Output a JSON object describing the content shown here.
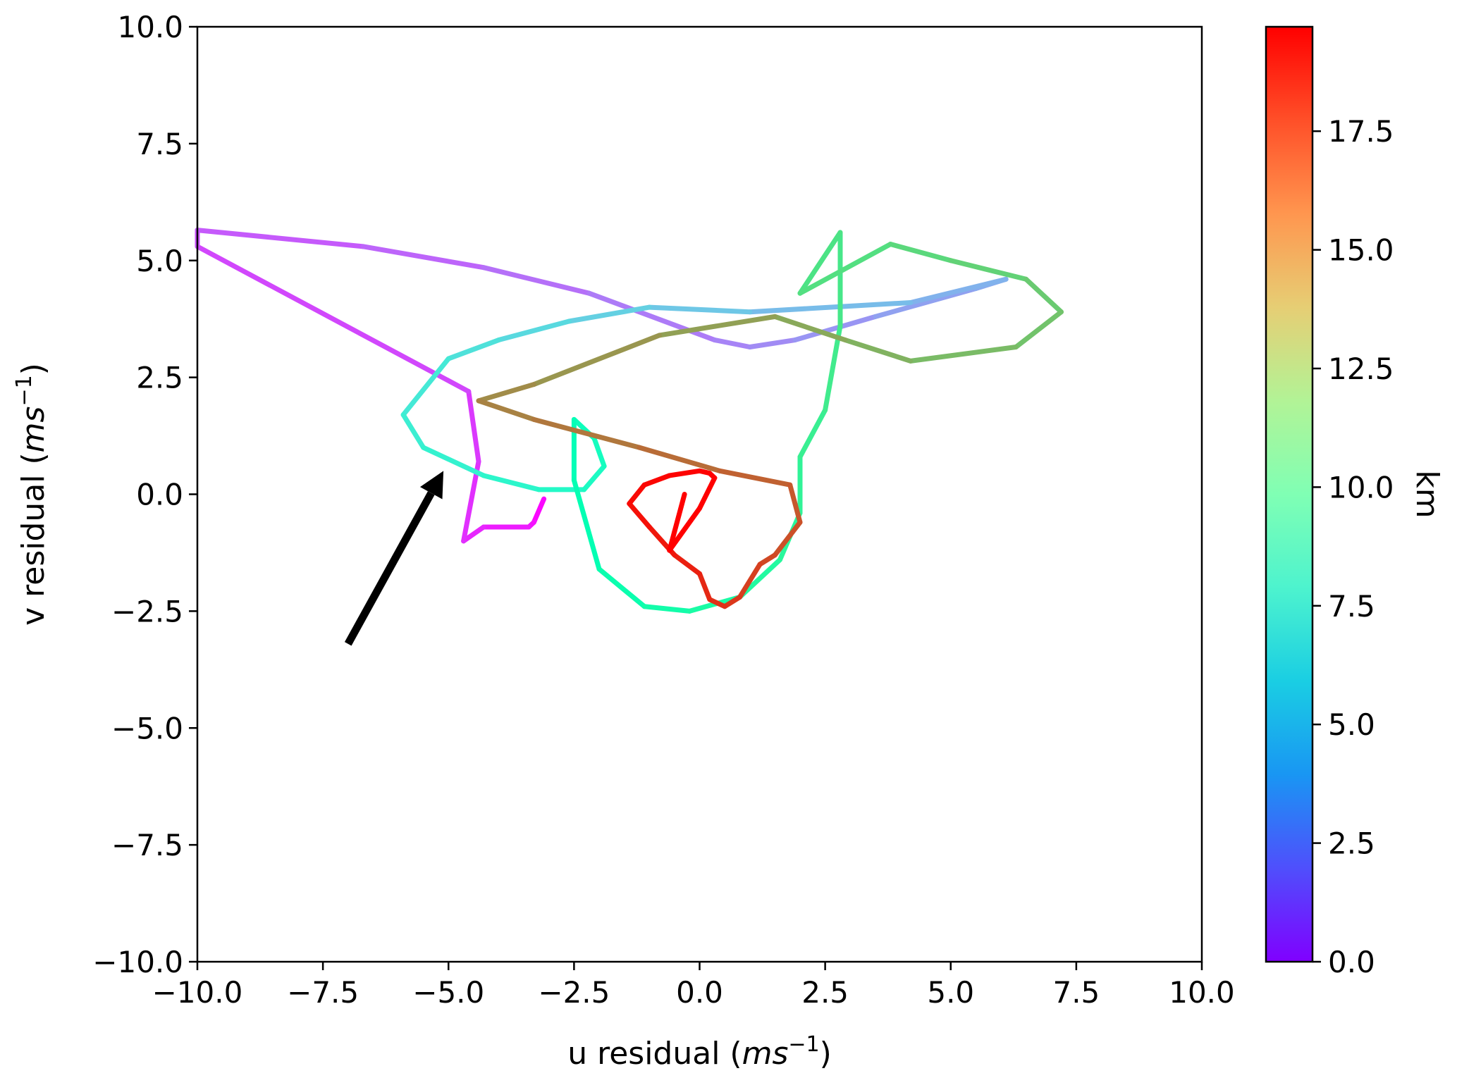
{
  "chart_data": {
    "type": "line",
    "xlabel_text": "u residual (",
    "xlabel_unit_base": "ms",
    "xlabel_unit_exp": "−1",
    "xlabel_close": ")",
    "ylabel_text": "v residual (",
    "ylabel_unit_base": "ms",
    "ylabel_unit_exp": "−1",
    "ylabel_close": ")",
    "xlim": [
      -10,
      10
    ],
    "ylim": [
      -10,
      10
    ],
    "x_ticks": [
      -10,
      -7.5,
      -5,
      -2.5,
      0,
      2.5,
      5,
      7.5,
      10
    ],
    "x_tick_labels": [
      "−10.0",
      "−7.5",
      "−5.0",
      "−2.5",
      "0.0",
      "2.5",
      "5.0",
      "7.5",
      "10.0"
    ],
    "y_ticks": [
      -10,
      -7.5,
      -5,
      -2.5,
      0,
      2.5,
      5,
      7.5,
      10
    ],
    "y_tick_labels": [
      "−10.0",
      "−7.5",
      "−5.0",
      "−2.5",
      "0.0",
      "2.5",
      "5.0",
      "7.5",
      "10.0"
    ],
    "colorbar": {
      "label": "km",
      "range": [
        0,
        19.7
      ],
      "ticks": [
        0,
        2.5,
        5,
        7.5,
        10,
        12.5,
        15,
        17.5
      ],
      "tick_labels": [
        "0.0",
        "2.5",
        "5.0",
        "7.5",
        "10.0",
        "12.5",
        "15.0",
        "17.5"
      ],
      "colormap": "rainbow"
    },
    "hodograph_u": [
      -3.1,
      -3.3,
      -3.4,
      -4.3,
      -4.7,
      -4.4,
      -4.6,
      -10.0,
      -10.0,
      -6.7,
      -4.3,
      -2.2,
      0.3,
      1.0,
      1.9,
      3.5,
      5.5,
      6.1,
      4.2,
      1.0,
      -1.0,
      -2.6,
      -4.0,
      -5.0,
      -5.9,
      -5.5,
      -4.3,
      -3.2,
      -2.3,
      -1.9,
      -2.1,
      -2.5,
      -2.5,
      -2.0,
      -1.1,
      -0.2,
      0.8,
      1.6,
      2.0,
      2.0,
      2.5,
      2.8,
      2.8,
      2.0,
      3.8,
      5.0,
      6.5,
      7.2,
      6.3,
      4.2,
      2.9,
      1.5,
      -0.8,
      -3.3,
      -4.4,
      -3.3,
      -1.2,
      0.4,
      1.8,
      2.0,
      1.5,
      1.2,
      0.8,
      0.5,
      0.2,
      0.0,
      -0.5,
      -1.0,
      -1.4,
      -1.1,
      -0.6,
      0.0,
      0.2,
      0.3,
      0.0,
      -0.4,
      -0.6,
      -0.5,
      -0.3
    ],
    "hodograph_v": [
      -0.1,
      -0.6,
      -0.7,
      -0.7,
      -1.0,
      0.7,
      2.2,
      5.3,
      5.65,
      5.3,
      4.85,
      4.3,
      3.3,
      3.15,
      3.3,
      3.8,
      4.4,
      4.6,
      4.1,
      3.9,
      4.0,
      3.7,
      3.3,
      2.9,
      1.7,
      1.0,
      0.4,
      0.1,
      0.1,
      0.6,
      1.2,
      1.6,
      0.3,
      -1.6,
      -2.4,
      -2.5,
      -2.2,
      -1.4,
      -0.4,
      0.8,
      1.8,
      3.6,
      5.6,
      4.3,
      5.35,
      5.0,
      4.6,
      3.9,
      3.15,
      2.85,
      3.3,
      3.8,
      3.4,
      2.35,
      2.0,
      1.6,
      1.0,
      0.5,
      0.2,
      -0.6,
      -1.3,
      -1.5,
      -2.2,
      -2.4,
      -2.25,
      -1.7,
      -1.3,
      -0.7,
      -0.2,
      0.2,
      0.4,
      0.5,
      0.45,
      0.35,
      -0.3,
      -0.9,
      -1.2,
      -0.8,
      0.0
    ],
    "hodograph_height_km": [
      0.0,
      0.32,
      0.55,
      0.82,
      1.05,
      1.3,
      1.55,
      2.0,
      2.1,
      2.4,
      2.7,
      3.0,
      3.3,
      3.5,
      3.75,
      4.1,
      4.5,
      4.7,
      5.0,
      5.4,
      5.8,
      6.2,
      6.6,
      7.0,
      7.4,
      7.7,
      8.0,
      8.3,
      8.6,
      8.9,
      9.2,
      9.5,
      9.8,
      10.1,
      10.4,
      10.7,
      11.0,
      11.3,
      11.6,
      11.9,
      12.2,
      12.5,
      12.7,
      12.9,
      13.2,
      13.5,
      13.8,
      14.1,
      14.4,
      14.7,
      15.0,
      15.3,
      15.6,
      15.9,
      16.2,
      16.5,
      16.8,
      17.1,
      17.4,
      17.6,
      17.8,
      18.0,
      18.2,
      18.4,
      18.6,
      18.8,
      19.0,
      19.2,
      19.4,
      19.5,
      19.6,
      19.65,
      19.7,
      19.7,
      19.7,
      19.7,
      19.7,
      19.7,
      19.7
    ],
    "annotation_arrow": {
      "from": [
        -7.0,
        -3.2
      ],
      "to": [
        -5.1,
        0.5
      ]
    }
  }
}
